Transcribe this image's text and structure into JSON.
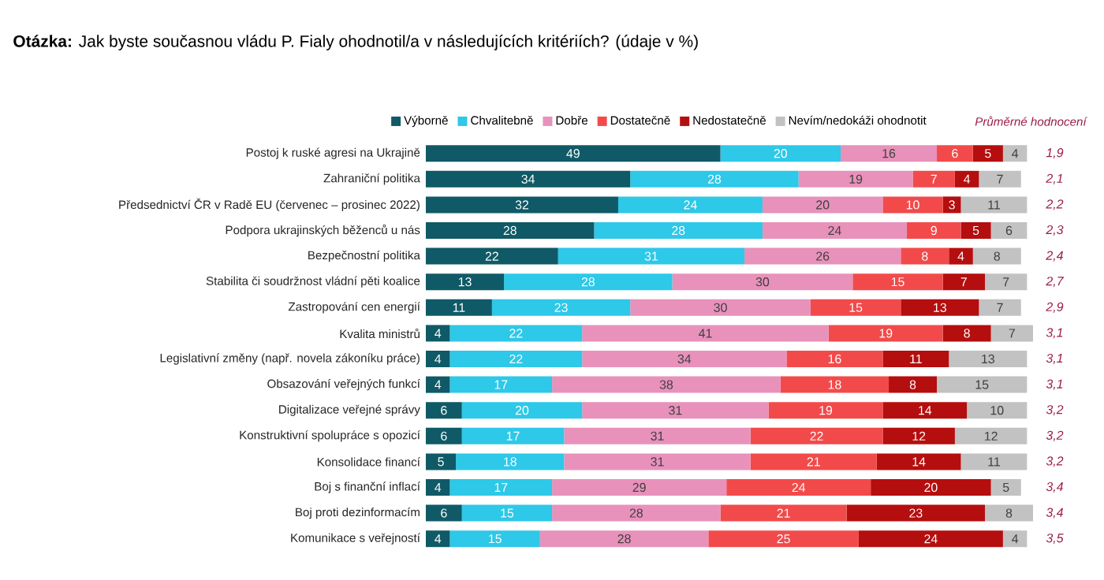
{
  "chart_data": {
    "type": "bar",
    "orientation": "horizontal",
    "stacked": true,
    "data_labels": true,
    "legend": "top",
    "tick_labels": "y",
    "title": "**Otázka:** Jak byste současnou vládu P. Fialy ohodnotil/a v následujících kritériích? (údaje v %)",
    "categories": [
      "Postoj k ruské agresi na Ukrajině",
      "Zahraniční politika",
      "Předsednictví ČR v Radě EU (červenec – prosinec 2022)",
      "Podpora ukrajinských běženců u nás",
      "Bezpečnostní politika",
      "Stabilita či soudržnost vládní pěti koalice",
      "Zastropování cen energií",
      "Kvalita ministrů",
      "Legislativní změny (např. novela zákoníku práce)",
      "Obsazování veřejných funkcí",
      "Digitalizace veřejné správy",
      "Konstruktivní spolupráce s opozicí",
      "Konsolidace financí",
      "Boj s finanční inflací",
      "Boj proti dezinformacím",
      "Komunikace s veřejností"
    ],
    "series": [
      {
        "name": "Výborně",
        "color": "#0f5a66",
        "values": [
          49,
          34,
          32,
          28,
          22,
          13,
          11,
          4,
          4,
          4,
          6,
          6,
          5,
          4,
          6,
          4
        ]
      },
      {
        "name": "Chvalitebně",
        "color": "#2ec8e8",
        "values": [
          20,
          28,
          24,
          28,
          31,
          28,
          23,
          22,
          22,
          17,
          20,
          17,
          18,
          17,
          15,
          15
        ]
      },
      {
        "name": "Dobře",
        "color": "#e891bb",
        "values": [
          16,
          19,
          20,
          24,
          26,
          30,
          30,
          41,
          34,
          38,
          31,
          31,
          31,
          29,
          28,
          28
        ]
      },
      {
        "name": "Dostatečně",
        "color": "#f24a4a",
        "values": [
          6,
          7,
          10,
          9,
          8,
          15,
          15,
          19,
          16,
          18,
          19,
          22,
          21,
          24,
          21,
          25
        ]
      },
      {
        "name": "Nedostatečně",
        "color": "#b50e0e",
        "values": [
          5,
          4,
          3,
          5,
          4,
          7,
          13,
          8,
          11,
          8,
          14,
          12,
          14,
          20,
          23,
          24
        ]
      },
      {
        "name": "Nevím/nedokáži ohodnotit",
        "color": "#c2c2c2",
        "values": [
          4,
          7,
          11,
          6,
          8,
          7,
          7,
          7,
          13,
          15,
          10,
          12,
          11,
          5,
          8,
          4
        ]
      }
    ],
    "annotations": [
      "*Průměrné hodnocení*",
      "*1,9*",
      "*2,1*",
      "*2,2*",
      "*2,3*",
      "*2,4*",
      "*2,7*",
      "*2,9*",
      "*3,1*",
      "*3,1*",
      "*3,1*",
      "*3,2*",
      "*3,2*",
      "*3,2*",
      "*3,4*",
      "*3,4*",
      "*3,5*"
    ]
  }
}
